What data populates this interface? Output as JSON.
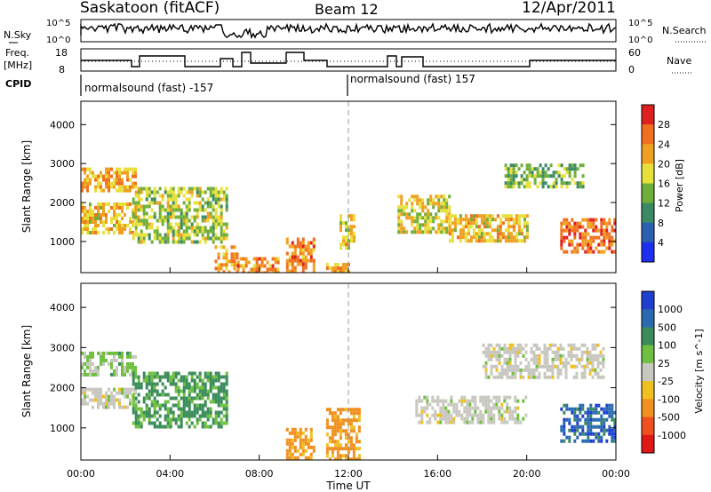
{
  "header": {
    "station": "Saskatoon (fitACF)",
    "beam": "Beam 12",
    "date": "12/Apr/2011"
  },
  "status_panels": {
    "nsky_label": "N.Sky",
    "nsky_ticks": [
      "10^5",
      "10^0"
    ],
    "nsearch_label": "N.Search",
    "nsearch_ticks": [
      "10^5",
      "10^0"
    ],
    "freq_label_line1": "Freq.",
    "freq_label_line2": "[MHz]",
    "freq_ticks": [
      "18",
      "8"
    ],
    "nave_label": "Nave",
    "nave_ticks": [
      "60",
      "0"
    ],
    "cpid_label": "CPID",
    "cpid_segments": [
      {
        "label": "normalsound (fast) -157",
        "start_hour": 0
      },
      {
        "label": "normalsound (fast) 157",
        "start_hour": 12
      }
    ]
  },
  "chart_data": [
    {
      "type": "heatmap",
      "quantity": "Power",
      "ylabel": "Slant Range [km]",
      "yticks": [
        "1000",
        "2000",
        "3000",
        "4000"
      ],
      "ylim": [
        200,
        4600
      ],
      "xlim": [
        0,
        24
      ],
      "colorbar_label": "Power [dB]",
      "colorbar_ticks": [
        "4",
        "8",
        "12",
        "16",
        "20",
        "24",
        "28"
      ],
      "colorbar_colors": [
        "#1f2ff0",
        "#2b5fb0",
        "#3b8a66",
        "#6fae3a",
        "#e8e03a",
        "#f0a020",
        "#f07020",
        "#e02020"
      ],
      "regions": [
        {
          "x": [
            0.0,
            2.5
          ],
          "y": [
            1200,
            2000
          ],
          "v": 20
        },
        {
          "x": [
            0.0,
            2.5
          ],
          "y": [
            2300,
            2900
          ],
          "v": 22
        },
        {
          "x": [
            2.3,
            6.5
          ],
          "y": [
            1000,
            2400
          ],
          "v": 16
        },
        {
          "x": [
            6.0,
            7.0
          ],
          "y": [
            200,
            900
          ],
          "v": 22
        },
        {
          "x": [
            7.0,
            8.8
          ],
          "y": [
            200,
            600
          ],
          "v": 24
        },
        {
          "x": [
            9.2,
            10.5
          ],
          "y": [
            200,
            1100
          ],
          "v": 24
        },
        {
          "x": [
            11.0,
            12.0
          ],
          "y": [
            200,
            450
          ],
          "v": 22
        },
        {
          "x": [
            11.6,
            12.3
          ],
          "y": [
            800,
            1700
          ],
          "v": 20
        },
        {
          "x": [
            14.2,
            16.5
          ],
          "y": [
            1200,
            2200
          ],
          "v": 18
        },
        {
          "x": [
            16.5,
            20.0
          ],
          "y": [
            1000,
            1700
          ],
          "v": 20
        },
        {
          "x": [
            19.0,
            22.5
          ],
          "y": [
            2400,
            3000
          ],
          "v": 14
        },
        {
          "x": [
            21.5,
            24.0
          ],
          "y": [
            700,
            1600
          ],
          "v": 26
        }
      ]
    },
    {
      "type": "heatmap",
      "quantity": "Velocity",
      "ylabel": "Slant Range [km]",
      "xlabel": "Time UT",
      "xticks": [
        "00:00",
        "04:00",
        "08:00",
        "12:00",
        "16:00",
        "20:00",
        "00:00"
      ],
      "yticks": [
        "1000",
        "2000",
        "3000",
        "4000"
      ],
      "ylim": [
        200,
        4600
      ],
      "xlim": [
        0,
        24
      ],
      "colorbar_label": "Velocity [m s^-1]",
      "colorbar_ticks": [
        "1000",
        "500",
        "100",
        "25",
        "-25",
        "-100",
        "-500",
        "-1000"
      ],
      "colorbar_colors": [
        "#1f3fd0",
        "#2a6ab0",
        "#3a8c5a",
        "#6fc040",
        "#c8c8c0",
        "#f0c020",
        "#f09020",
        "#f05020",
        "#e01818"
      ],
      "regions": [
        {
          "x": [
            0.0,
            2.5
          ],
          "y": [
            1500,
            2000
          ],
          "v": 0
        },
        {
          "x": [
            0.0,
            2.5
          ],
          "y": [
            2300,
            2900
          ],
          "v": 50
        },
        {
          "x": [
            2.3,
            6.5
          ],
          "y": [
            1000,
            2400
          ],
          "v": 150
        },
        {
          "x": [
            9.2,
            10.5
          ],
          "y": [
            200,
            1000
          ],
          "v": -150
        },
        {
          "x": [
            11.0,
            12.5
          ],
          "y": [
            200,
            1500
          ],
          "v": -200
        },
        {
          "x": [
            15.0,
            20.0
          ],
          "y": [
            1100,
            1800
          ],
          "v": 0
        },
        {
          "x": [
            18.0,
            23.5
          ],
          "y": [
            2300,
            3100
          ],
          "v": 0
        },
        {
          "x": [
            21.5,
            24.0
          ],
          "y": [
            700,
            1600
          ],
          "v": 800
        }
      ]
    }
  ]
}
